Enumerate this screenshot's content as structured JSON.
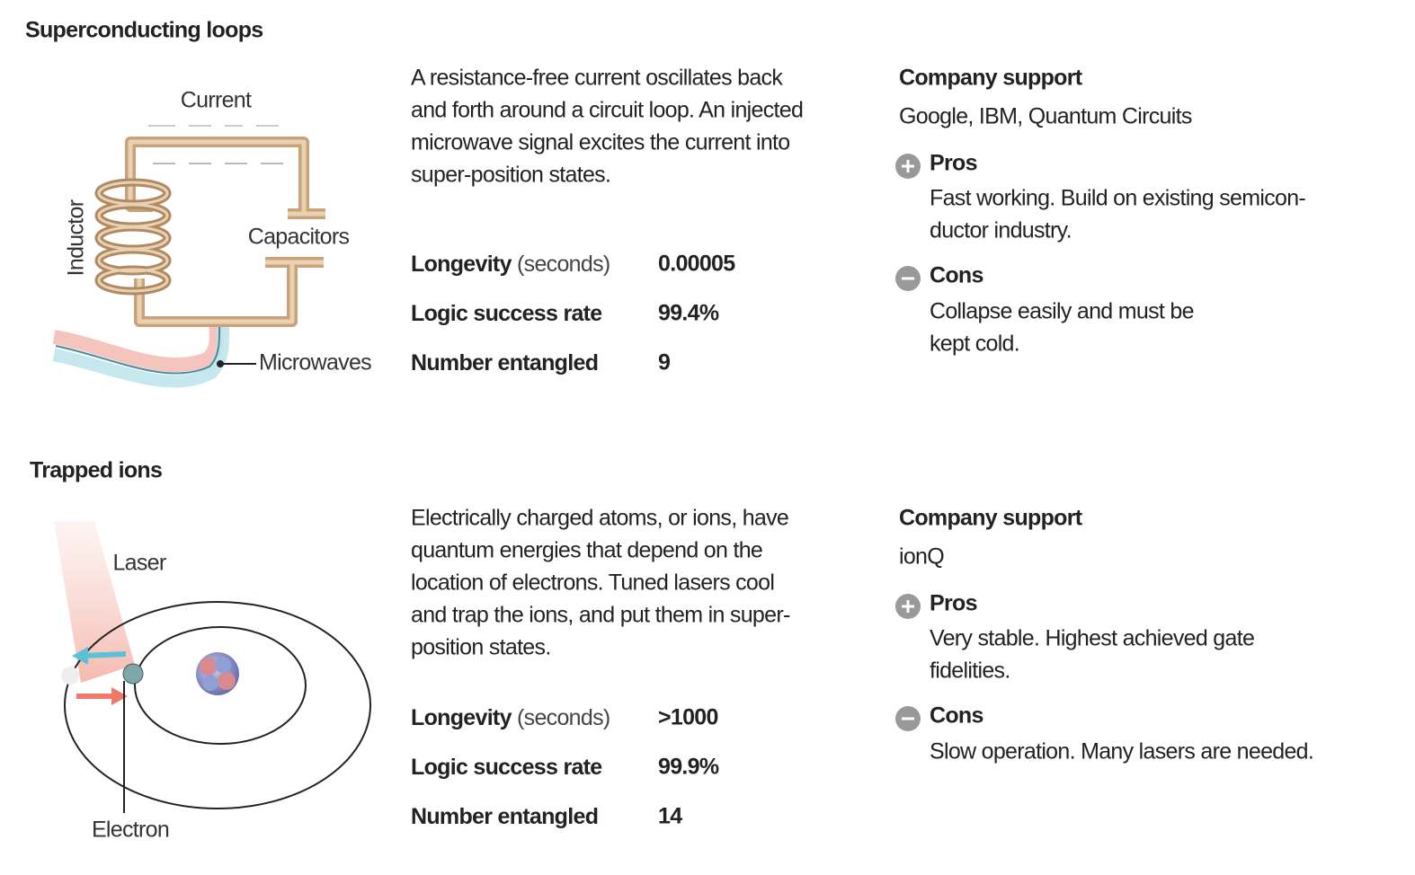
{
  "sections": [
    {
      "title": "Superconducting loops",
      "diagram_labels": {
        "current": "Current",
        "inductor": "Inductor",
        "capacitors": "Capacitors",
        "microwaves": "Microwaves"
      },
      "description": [
        "A resistance-free current oscillates back",
        "and forth around a circuit loop. An injected",
        "microwave signal excites the current into",
        "super-position states."
      ],
      "stats": [
        {
          "label": "Longevity",
          "unit": "(seconds)",
          "value": "0.00005"
        },
        {
          "label": "Logic success rate",
          "value": "99.4%"
        },
        {
          "label": "Number entangled",
          "value": "9"
        }
      ],
      "company_support": {
        "heading": "Company support",
        "text": "Google, IBM, Quantum Circuits"
      },
      "pros": {
        "heading": "Pros",
        "lines": [
          "Fast working. Build on existing semicon-",
          "ductor industry."
        ]
      },
      "cons": {
        "heading": "Cons",
        "lines": [
          "Collapse easily and must be",
          "kept cold."
        ]
      }
    },
    {
      "title": "Trapped ions",
      "diagram_labels": {
        "laser": "Laser",
        "electron": "Electron"
      },
      "description": [
        "Electrically charged atoms, or ions, have",
        "quantum energies that depend on the",
        "location of electrons. Tuned lasers cool",
        "and trap the ions, and put them in super-",
        "position states."
      ],
      "stats": [
        {
          "label": "Longevity",
          "unit": "(seconds)",
          "value": ">1000"
        },
        {
          "label": "Logic success rate",
          "value": "99.9%"
        },
        {
          "label": "Number entangled",
          "value": "14"
        }
      ],
      "company_support": {
        "heading": "Company support",
        "text": "ionQ"
      },
      "pros": {
        "heading": "Pros",
        "lines": [
          "Very stable. Highest achieved gate",
          "fidelities."
        ]
      },
      "cons": {
        "heading": "Cons",
        "lines": [
          "Slow operation. Many lasers are needed."
        ]
      }
    }
  ]
}
